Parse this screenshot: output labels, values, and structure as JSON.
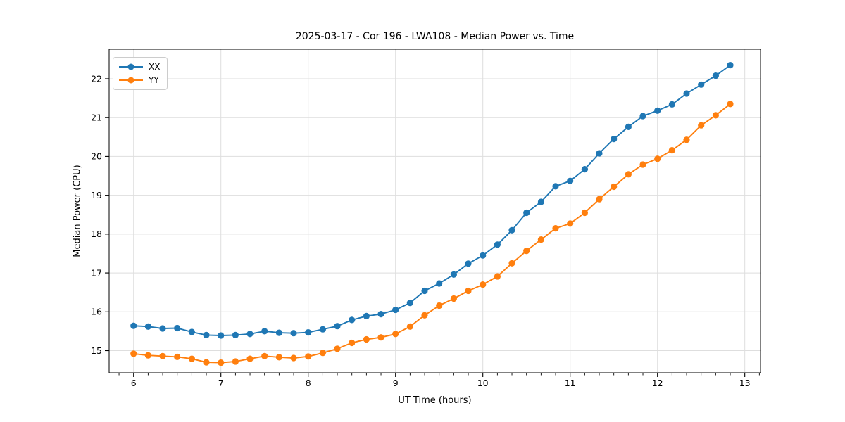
{
  "title": "2025-03-17 - Cor 196 - LWA108 - Median Power vs. Time",
  "colors": {
    "series_xx": "#1f77b4",
    "series_yy": "#ff7f0e",
    "grid": "#dedede",
    "spine": "#000000",
    "text": "#000000",
    "background": "#ffffff",
    "legend_border": "#cccccc"
  },
  "chart_data": {
    "type": "line",
    "title": "2025-03-17 - Cor 196 - LWA108 - Median Power vs. Time",
    "xlabel": "UT Time (hours)",
    "ylabel": "Median Power (CPU)",
    "xlim": [
      5.72,
      13.18
    ],
    "ylim": [
      14.43,
      22.76
    ],
    "x_ticks": [
      6,
      7,
      8,
      9,
      10,
      11,
      12,
      13
    ],
    "y_ticks": [
      15,
      16,
      17,
      18,
      19,
      20,
      21,
      22
    ],
    "x_minor_tick_step": 0.1666667,
    "grid": true,
    "legend_position": "upper-left",
    "marker": "circle",
    "x": [
      6.0,
      6.167,
      6.333,
      6.5,
      6.667,
      6.833,
      7.0,
      7.167,
      7.333,
      7.5,
      7.667,
      7.833,
      8.0,
      8.167,
      8.333,
      8.5,
      8.667,
      8.833,
      9.0,
      9.167,
      9.333,
      9.5,
      9.667,
      9.833,
      10.0,
      10.167,
      10.333,
      10.5,
      10.667,
      10.833,
      11.0,
      11.167,
      11.333,
      11.5,
      11.667,
      11.833,
      12.0,
      12.167,
      12.333,
      12.5,
      12.667,
      12.833
    ],
    "series": [
      {
        "name": "XX",
        "color": "#1f77b4",
        "values": [
          15.64,
          15.62,
          15.57,
          15.58,
          15.48,
          15.4,
          15.39,
          15.4,
          15.43,
          15.5,
          15.46,
          15.45,
          15.47,
          15.55,
          15.63,
          15.79,
          15.89,
          15.94,
          16.05,
          16.23,
          16.54,
          16.73,
          16.96,
          17.24,
          17.45,
          17.73,
          18.1,
          18.55,
          18.83,
          19.23,
          19.37,
          19.67,
          20.08,
          20.45,
          20.76,
          21.04,
          21.18,
          21.34,
          21.62,
          21.85,
          22.08,
          22.35
        ]
      },
      {
        "name": "YY",
        "color": "#ff7f0e",
        "values": [
          14.92,
          14.88,
          14.86,
          14.84,
          14.79,
          14.7,
          14.69,
          14.72,
          14.79,
          14.86,
          14.83,
          14.81,
          14.85,
          14.94,
          15.05,
          15.2,
          15.29,
          15.34,
          15.43,
          15.62,
          15.91,
          16.16,
          16.34,
          16.54,
          16.7,
          16.91,
          17.25,
          17.57,
          17.86,
          18.15,
          18.27,
          18.55,
          18.9,
          19.22,
          19.54,
          19.79,
          19.94,
          20.16,
          20.43,
          20.8,
          21.06,
          21.35
        ]
      }
    ]
  }
}
